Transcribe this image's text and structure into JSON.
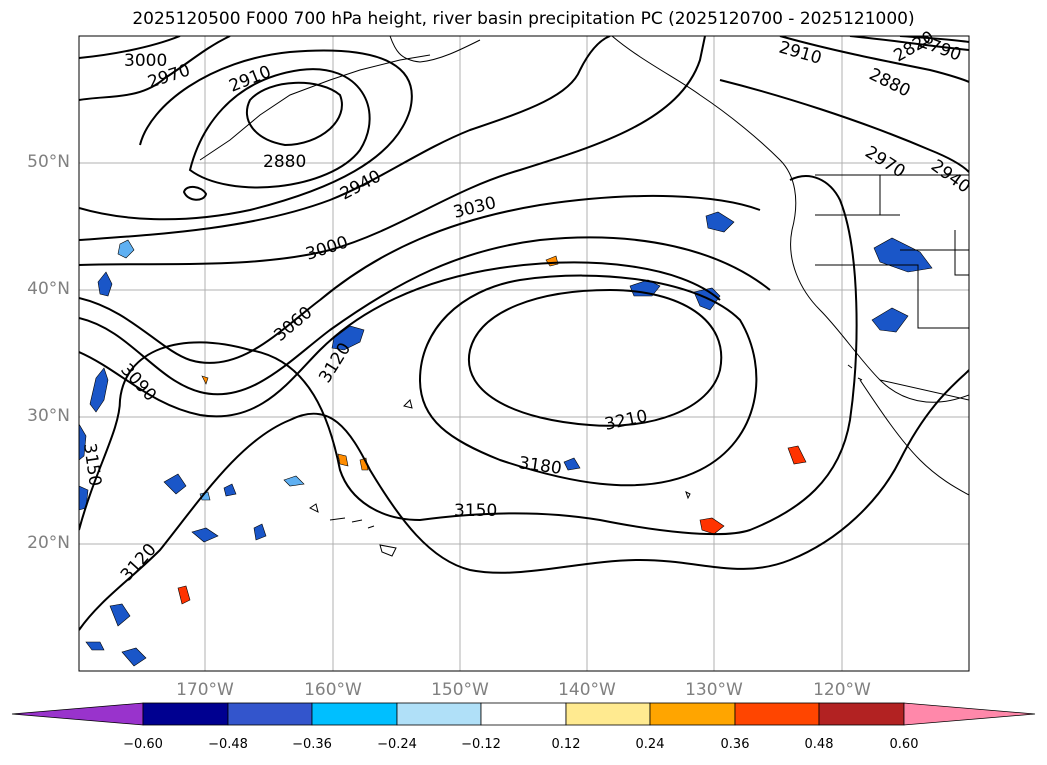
{
  "title": "2025120500 F000 700 hPa height, river basin precipitation PC (2025120700 - 2025121000)",
  "colors": {
    "grid": "#b0b0b0",
    "coast": "#000000",
    "contour": "#000000",
    "neg1": "#1a56c8",
    "neg2": "#5fb0f2",
    "pos1": "#ff8c00",
    "pos2": "#ff3300",
    "pos3": "#ffe066"
  },
  "axes": {
    "lat_labels": [
      "50°N",
      "40°N",
      "30°N",
      "20°N"
    ],
    "lon_labels": [
      "170°W",
      "160°W",
      "150°W",
      "140°W",
      "130°W",
      "120°W"
    ]
  },
  "contour_labels": [
    "3000",
    "2970",
    "2910",
    "2880",
    "2940",
    "3030",
    "3000",
    "3060",
    "3090",
    "3120",
    "3150",
    "3120",
    "3210",
    "3180",
    "3150",
    "2910",
    "2820",
    "2790",
    "2880",
    "2970",
    "2940"
  ],
  "colorbar": {
    "colors": [
      "#9933cc",
      "#000090",
      "#3355cc",
      "#00bfff",
      "#b0e0f8",
      "#ffffff",
      "#ffea90",
      "#ffa500",
      "#ff4500",
      "#b22222",
      "#ff88aa"
    ],
    "ticks": [
      "−0.60",
      "−0.48",
      "−0.36",
      "−0.24",
      "−0.12",
      "0.12",
      "0.24",
      "0.36",
      "0.48",
      "0.60"
    ]
  }
}
